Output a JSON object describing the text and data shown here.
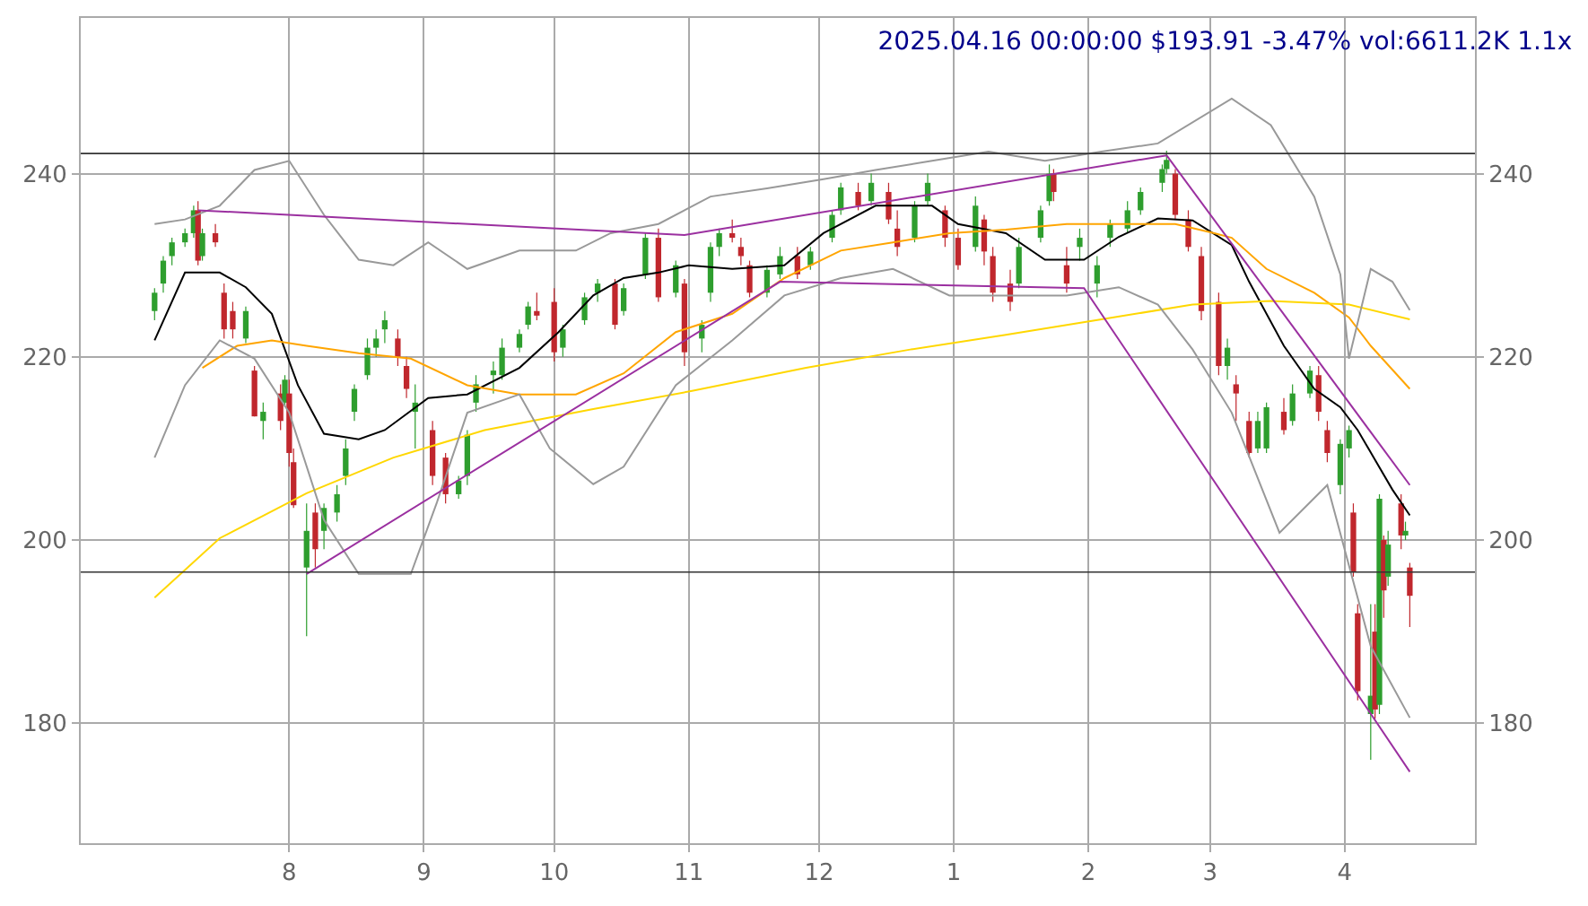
{
  "chart_data": {
    "type": "candlestick",
    "title": "2025.04.16 00:00:00 $193.91 -3.47% vol:6611.2K 1.1x",
    "xlim": [
      "2024-06-14",
      "2025-05-01"
    ],
    "xticks": [
      {
        "value": "2024-08-01",
        "label": "8"
      },
      {
        "value": "2024-09-01",
        "label": "9"
      },
      {
        "value": "2024-10-01",
        "label": "10"
      },
      {
        "value": "2024-11-01",
        "label": "11"
      },
      {
        "value": "2024-12-01",
        "label": "12"
      },
      {
        "value": "2025-01-01",
        "label": "1"
      },
      {
        "value": "2025-02-01",
        "label": "2"
      },
      {
        "value": "2025-03-01",
        "label": "3"
      },
      {
        "value": "2025-04-01",
        "label": "4"
      }
    ],
    "ylim": [
      166.9,
      257
    ],
    "yticks": [
      180,
      200,
      220,
      240
    ],
    "y2lim": [
      166.9,
      257
    ],
    "y2ticks": [
      180,
      200,
      220,
      240
    ],
    "grid": true,
    "marker": "none",
    "line_style": "solid",
    "ref_lines": [
      {
        "axis": "y",
        "value": 242.2,
        "color": "#333333"
      },
      {
        "axis": "y",
        "value": 196.5,
        "color": "#333333"
      }
    ],
    "series": [
      {
        "type": "candlestick",
        "x": [
          "2024-07-01",
          "2024-07-03",
          "2024-07-05",
          "2024-07-08",
          "2024-07-10",
          "2024-07-11",
          "2024-07-12",
          "2024-07-15",
          "2024-07-17",
          "2024-07-19",
          "2024-07-22",
          "2024-07-24",
          "2024-07-26",
          "2024-07-30",
          "2024-07-31",
          "2024-08-01",
          "2024-08-02",
          "2024-08-05",
          "2024-08-07",
          "2024-08-09",
          "2024-08-12",
          "2024-08-14",
          "2024-08-16",
          "2024-08-19",
          "2024-08-21",
          "2024-08-23",
          "2024-08-26",
          "2024-08-28",
          "2024-08-30",
          "2024-09-03",
          "2024-09-06",
          "2024-09-09",
          "2024-09-11",
          "2024-09-13",
          "2024-09-17",
          "2024-09-19",
          "2024-09-23",
          "2024-09-25",
          "2024-09-27",
          "2024-10-01",
          "2024-10-03",
          "2024-10-08",
          "2024-10-11",
          "2024-10-15",
          "2024-10-17",
          "2024-10-22",
          "2024-10-25",
          "2024-10-29",
          "2024-10-31",
          "2024-11-04",
          "2024-11-06",
          "2024-11-08",
          "2024-11-11",
          "2024-11-13",
          "2024-11-15",
          "2024-11-19",
          "2024-11-22",
          "2024-11-26",
          "2024-11-29",
          "2024-12-04",
          "2024-12-06",
          "2024-12-10",
          "2024-12-13",
          "2024-12-17",
          "2024-12-19",
          "2024-12-23",
          "2024-12-26",
          "2024-12-30",
          "2025-01-02",
          "2025-01-06",
          "2025-01-08",
          "2025-01-10",
          "2025-01-14",
          "2025-01-16",
          "2025-01-21",
          "2025-01-23",
          "2025-01-24",
          "2025-01-27",
          "2025-01-30",
          "2025-02-03",
          "2025-02-06",
          "2025-02-10",
          "2025-02-13",
          "2025-02-18",
          "2025-02-19",
          "2025-02-21",
          "2025-02-24",
          "2025-02-27",
          "2025-03-03",
          "2025-03-05",
          "2025-03-07",
          "2025-03-10",
          "2025-03-12",
          "2025-03-14",
          "2025-03-18",
          "2025-03-20",
          "2025-03-24",
          "2025-03-26",
          "2025-03-28",
          "2025-03-31",
          "2025-04-02",
          "2025-04-03",
          "2025-04-04",
          "2025-04-07",
          "2025-04-08",
          "2025-04-09",
          "2025-04-10",
          "2025-04-11",
          "2025-04-14",
          "2025-04-15",
          "2025-04-16"
        ],
        "ohlc": [
          [
            225,
            227.5,
            224,
            227
          ],
          [
            228,
            231,
            227,
            230.5
          ],
          [
            231,
            233,
            230,
            232.5
          ],
          [
            232.5,
            234,
            232,
            233.5
          ],
          [
            233.5,
            236.5,
            233,
            236
          ],
          [
            236,
            237,
            230,
            230.5
          ],
          [
            231,
            234,
            230.5,
            233.5
          ],
          [
            233.5,
            234.5,
            232,
            232.5
          ],
          [
            227,
            228,
            222,
            223
          ],
          [
            225,
            226,
            222,
            223
          ],
          [
            222,
            225.5,
            221.5,
            225
          ],
          [
            218.5,
            219,
            213.5,
            213.5
          ],
          [
            213,
            215,
            211,
            214
          ],
          [
            216,
            217,
            212,
            213
          ],
          [
            215,
            218,
            214.5,
            217.5
          ],
          [
            216,
            217.5,
            208,
            209.5
          ],
          [
            208.5,
            210,
            203.5,
            203.8
          ],
          [
            197,
            204,
            189.5,
            201
          ],
          [
            203,
            204,
            197,
            199
          ],
          [
            201,
            204,
            199,
            203.5
          ],
          [
            203,
            206,
            202,
            205
          ],
          [
            207,
            211,
            206,
            210
          ],
          [
            214,
            217,
            213,
            216.5
          ],
          [
            218,
            222,
            217.5,
            221
          ],
          [
            221,
            223,
            220,
            222
          ],
          [
            223,
            225,
            221.5,
            224
          ],
          [
            222,
            223,
            219,
            220
          ],
          [
            219,
            220,
            215.5,
            216.5
          ],
          [
            214,
            217,
            210,
            215
          ],
          [
            212,
            213,
            206,
            207
          ],
          [
            209,
            209.5,
            204,
            205
          ],
          [
            205,
            207,
            204.5,
            206.5
          ],
          [
            207,
            212,
            206,
            211.5
          ],
          [
            215,
            218,
            214,
            217
          ],
          [
            218,
            219.5,
            216,
            218.5
          ],
          [
            218,
            222,
            217.5,
            221
          ],
          [
            221,
            223,
            220.5,
            222.5
          ],
          [
            223.5,
            226,
            223,
            225.5
          ],
          [
            225,
            227,
            224,
            224.5
          ],
          [
            226,
            227.5,
            219.5,
            220.5
          ],
          [
            221,
            223.5,
            220,
            223
          ],
          [
            224,
            227,
            223.5,
            226.5
          ],
          [
            227,
            228.5,
            226,
            228
          ],
          [
            228,
            228.5,
            223,
            223.5
          ],
          [
            225,
            228,
            224.5,
            227.5
          ],
          [
            229,
            233.5,
            228.5,
            233
          ],
          [
            233,
            234,
            226,
            226.5
          ],
          [
            227,
            230.5,
            226.5,
            230
          ],
          [
            228,
            228.5,
            219,
            220.5
          ],
          [
            222,
            224,
            220.5,
            223.5
          ],
          [
            227,
            232.5,
            226,
            232
          ],
          [
            232,
            234,
            231,
            233.5
          ],
          [
            233.5,
            235,
            232.5,
            233
          ],
          [
            232,
            233,
            230,
            231
          ],
          [
            230,
            230.5,
            226.5,
            227
          ],
          [
            227,
            230,
            226.5,
            229.5
          ],
          [
            229,
            232,
            228.5,
            231
          ],
          [
            231,
            232,
            228.5,
            229
          ],
          [
            230,
            232,
            229.5,
            231.5
          ],
          [
            233,
            236,
            232.5,
            235.5
          ],
          [
            236,
            239,
            235.5,
            238.5
          ],
          [
            238,
            239,
            236,
            236.5
          ],
          [
            237,
            240,
            236.5,
            239
          ],
          [
            238,
            239,
            234.5,
            235
          ],
          [
            234,
            236,
            231,
            232
          ],
          [
            233,
            237,
            232.5,
            236.5
          ],
          [
            237,
            240,
            236.5,
            239
          ],
          [
            236,
            236.5,
            232,
            233
          ],
          [
            233,
            234,
            229.5,
            230
          ],
          [
            232,
            237.5,
            231.5,
            236.5
          ],
          [
            235,
            235.5,
            230,
            231.5
          ],
          [
            231,
            232,
            226,
            227
          ],
          [
            228,
            229.5,
            225,
            226
          ],
          [
            228,
            233,
            227.5,
            232
          ],
          [
            233,
            236.5,
            232.5,
            236
          ],
          [
            237,
            241,
            236.5,
            240
          ],
          [
            240,
            240.5,
            237,
            238
          ],
          [
            230,
            232,
            227,
            228
          ],
          [
            232,
            234,
            230.5,
            233
          ],
          [
            228,
            231,
            226.5,
            230
          ],
          [
            233,
            235,
            232,
            234.5
          ],
          [
            234,
            237,
            233.5,
            236
          ],
          [
            236,
            238.5,
            235.5,
            238
          ],
          [
            239,
            241,
            238,
            240.5
          ],
          [
            240.5,
            242.5,
            240,
            241.5
          ],
          [
            240,
            240.5,
            235,
            235.5
          ],
          [
            235,
            236,
            231.5,
            232
          ],
          [
            231,
            232,
            224,
            225
          ],
          [
            226,
            227,
            218,
            219
          ],
          [
            219,
            222,
            217.5,
            221
          ],
          [
            217,
            218,
            213,
            216
          ],
          [
            213,
            214,
            209,
            209.5
          ],
          [
            210,
            214,
            209.5,
            213
          ],
          [
            210,
            215,
            209.5,
            214.5
          ],
          [
            214,
            215.5,
            211.5,
            212
          ],
          [
            213,
            217,
            212.5,
            216
          ],
          [
            216,
            219,
            215.5,
            218.5
          ],
          [
            218,
            219,
            213,
            214
          ],
          [
            212,
            213,
            208.5,
            209.5
          ],
          [
            206,
            211,
            205,
            210.5
          ],
          [
            210,
            212.5,
            209,
            212
          ],
          [
            203,
            204,
            196,
            196.5
          ],
          [
            192,
            193,
            182.5,
            183.5
          ],
          [
            181,
            193,
            176,
            183
          ],
          [
            190,
            193,
            180.5,
            181.5
          ],
          [
            182,
            205,
            181,
            204.5
          ],
          [
            200,
            200.5,
            191.5,
            194.5
          ],
          [
            196,
            201,
            195,
            199.5
          ],
          [
            204,
            205,
            199,
            200.5
          ],
          [
            200.5,
            202,
            200,
            201
          ],
          [
            197,
            197.5,
            190.5,
            193.91
          ]
        ],
        "colors": [
          "#2e9e2e",
          "#2e9e2e",
          "#2e9e2e",
          "#2e9e2e",
          "#2e9e2e",
          "#c0272d",
          "#2e9e2e",
          "#c0272d",
          "#c0272d",
          "#c0272d",
          "#2e9e2e",
          "#c0272d",
          "#2e9e2e",
          "#c0272d",
          "#2e9e2e",
          "#c0272d",
          "#c0272d",
          "#2e9e2e",
          "#c0272d",
          "#2e9e2e",
          "#2e9e2e",
          "#2e9e2e",
          "#2e9e2e",
          "#2e9e2e",
          "#2e9e2e",
          "#2e9e2e",
          "#c0272d",
          "#c0272d",
          "#2e9e2e",
          "#c0272d",
          "#c0272d",
          "#2e9e2e",
          "#2e9e2e",
          "#2e9e2e",
          "#2e9e2e",
          "#2e9e2e",
          "#2e9e2e",
          "#2e9e2e",
          "#c0272d",
          "#c0272d",
          "#2e9e2e",
          "#2e9e2e",
          "#2e9e2e",
          "#c0272d",
          "#2e9e2e",
          "#2e9e2e",
          "#c0272d",
          "#2e9e2e",
          "#c0272d",
          "#2e9e2e",
          "#2e9e2e",
          "#2e9e2e",
          "#c0272d",
          "#c0272d",
          "#c0272d",
          "#2e9e2e",
          "#2e9e2e",
          "#c0272d",
          "#2e9e2e",
          "#2e9e2e",
          "#2e9e2e",
          "#c0272d",
          "#2e9e2e",
          "#c0272d",
          "#c0272d",
          "#2e9e2e",
          "#2e9e2e",
          "#c0272d",
          "#c0272d",
          "#2e9e2e",
          "#c0272d",
          "#c0272d",
          "#c0272d",
          "#2e9e2e",
          "#2e9e2e",
          "#2e9e2e",
          "#c0272d",
          "#c0272d",
          "#2e9e2e",
          "#2e9e2e",
          "#2e9e2e",
          "#2e9e2e",
          "#2e9e2e",
          "#2e9e2e",
          "#2e9e2e",
          "#c0272d",
          "#c0272d",
          "#c0272d",
          "#c0272d",
          "#2e9e2e",
          "#c0272d",
          "#c0272d",
          "#2e9e2e",
          "#2e9e2e",
          "#c0272d",
          "#2e9e2e",
          "#2e9e2e",
          "#c0272d",
          "#c0272d",
          "#2e9e2e",
          "#2e9e2e",
          "#c0272d",
          "#c0272d",
          "#2e9e2e",
          "#c0272d",
          "#2e9e2e",
          "#c0272d",
          "#2e9e2e",
          "#c0272d",
          "#2e9e2e",
          "#c0272d"
        ]
      },
      {
        "type": "line",
        "color": "#000000",
        "x": [
          "2024-07-01",
          "2024-07-08",
          "2024-07-16",
          "2024-07-22",
          "2024-07-28",
          "2024-08-03",
          "2024-08-09",
          "2024-08-17",
          "2024-08-23",
          "2024-09-02",
          "2024-09-11",
          "2024-09-23",
          "2024-10-02",
          "2024-10-10",
          "2024-10-17",
          "2024-10-25",
          "2024-11-01",
          "2024-11-11",
          "2024-11-23",
          "2024-12-02",
          "2024-12-14",
          "2024-12-27",
          "2025-01-02",
          "2025-01-13",
          "2025-01-22",
          "2025-01-31",
          "2025-02-08",
          "2025-02-17",
          "2025-02-25",
          "2025-03-06",
          "2025-03-10",
          "2025-03-18",
          "2025-03-25",
          "2025-03-31",
          "2025-04-04",
          "2025-04-12",
          "2025-04-16"
        ],
        "values": [
          221.8,
          229.2,
          229.2,
          227.6,
          224.7,
          216.9,
          211.6,
          211,
          212,
          215.5,
          215.9,
          218.8,
          222.7,
          226.7,
          228.6,
          229.2,
          230,
          229.6,
          230,
          233.5,
          236.5,
          236.5,
          234.5,
          233.5,
          230.6,
          230.6,
          233.1,
          235.1,
          234.9,
          232.2,
          228.2,
          221.2,
          216.5,
          214.5,
          212,
          205.5,
          202.7
        ]
      },
      {
        "type": "line",
        "color": "#ffa500",
        "x": [
          "2024-07-12",
          "2024-07-20",
          "2024-07-28",
          "2024-08-05",
          "2024-08-17",
          "2024-08-29",
          "2024-09-11",
          "2024-09-23",
          "2024-10-06",
          "2024-10-17",
          "2024-10-29",
          "2024-11-11",
          "2024-11-23",
          "2024-12-06",
          "2024-12-18",
          "2024-12-31",
          "2025-01-13",
          "2025-01-27",
          "2025-02-08",
          "2025-02-21",
          "2025-03-02",
          "2025-03-06",
          "2025-03-14",
          "2025-03-25",
          "2025-04-02",
          "2025-04-07",
          "2025-04-16"
        ],
        "values": [
          218.8,
          221.2,
          221.8,
          221.2,
          220.4,
          219.8,
          216.9,
          215.9,
          215.9,
          218.2,
          222.7,
          224.7,
          228.6,
          231.6,
          232.5,
          233.5,
          233.9,
          234.5,
          234.5,
          234.5,
          233.5,
          233,
          229.6,
          227,
          224.3,
          221.2,
          216.5
        ]
      },
      {
        "type": "line",
        "color": "#ffd700",
        "x": [
          "2024-07-01",
          "2024-07-16",
          "2024-08-05",
          "2024-08-25",
          "2024-09-15",
          "2024-10-10",
          "2024-11-02",
          "2024-11-28",
          "2024-12-22",
          "2025-01-13",
          "2025-02-04",
          "2025-02-25",
          "2025-03-15",
          "2025-04-02",
          "2025-04-16"
        ],
        "values": [
          193.7,
          200.2,
          205.1,
          209,
          212,
          214.3,
          216.3,
          218.8,
          220.8,
          222.4,
          224.1,
          225.7,
          226.1,
          225.7,
          224.1
        ]
      },
      {
        "type": "line",
        "color": "#999999",
        "x": [
          "2024-07-01",
          "2024-07-08",
          "2024-07-16",
          "2024-07-24",
          "2024-08-01",
          "2024-08-09",
          "2024-08-17",
          "2024-08-25",
          "2024-09-02",
          "2024-09-11",
          "2024-09-23",
          "2024-10-06",
          "2024-10-14",
          "2024-10-25",
          "2024-11-06",
          "2024-11-19",
          "2024-12-02",
          "2024-12-14",
          "2024-12-27",
          "2025-01-09",
          "2025-01-22",
          "2025-02-04",
          "2025-02-17",
          "2025-03-06",
          "2025-03-15",
          "2025-03-25",
          "2025-03-31",
          "2025-04-02",
          "2025-04-07",
          "2025-04-12",
          "2025-04-16"
        ],
        "values": [
          234.5,
          235,
          236.5,
          240.4,
          241.4,
          235.5,
          230.6,
          230,
          232.5,
          229.6,
          231.6,
          231.6,
          233.5,
          234.5,
          237.5,
          238.4,
          239.4,
          240.4,
          241.4,
          242.4,
          241.4,
          242.4,
          243.3,
          248.2,
          245.3,
          237.5,
          229,
          219.8,
          229.6,
          228.2,
          225.1
        ]
      },
      {
        "type": "line",
        "color": "#999999",
        "x": [
          "2024-07-01",
          "2024-07-08",
          "2024-07-16",
          "2024-07-24",
          "2024-08-01",
          "2024-08-09",
          "2024-08-17",
          "2024-08-29",
          "2024-09-04",
          "2024-09-11",
          "2024-09-23",
          "2024-09-30",
          "2024-10-10",
          "2024-10-17",
          "2024-10-29",
          "2024-11-11",
          "2024-11-23",
          "2024-12-06",
          "2024-12-18",
          "2024-12-31",
          "2025-01-13",
          "2025-01-27",
          "2025-02-08",
          "2025-02-17",
          "2025-02-25",
          "2025-03-06",
          "2025-03-17",
          "2025-03-28",
          "2025-04-07",
          "2025-04-16"
        ],
        "values": [
          209,
          216.9,
          221.8,
          219.8,
          213.9,
          202.2,
          196.3,
          196.3,
          204.1,
          213.9,
          215.9,
          210,
          206.1,
          208,
          216.9,
          221.8,
          226.7,
          228.6,
          229.6,
          226.7,
          226.7,
          226.7,
          227.6,
          225.7,
          220.8,
          213.9,
          200.8,
          206,
          188.4,
          180.6
        ]
      },
      {
        "type": "line",
        "color": "#9b30a0",
        "x": [
          "2024-07-11",
          "2024-10-31",
          "2025-02-19"
        ],
        "values": [
          236,
          233.3,
          242
        ]
      },
      {
        "type": "line",
        "color": "#9b30a0",
        "x": [
          "2024-08-05",
          "2024-11-22",
          "2025-01-31",
          "2025-04-16"
        ],
        "values": [
          196.3,
          228.2,
          227.5,
          174.7
        ]
      },
      {
        "type": "line",
        "color": "#9b30a0",
        "x": [
          "2025-02-19",
          "2025-04-16"
        ],
        "values": [
          242,
          206
        ]
      }
    ]
  }
}
